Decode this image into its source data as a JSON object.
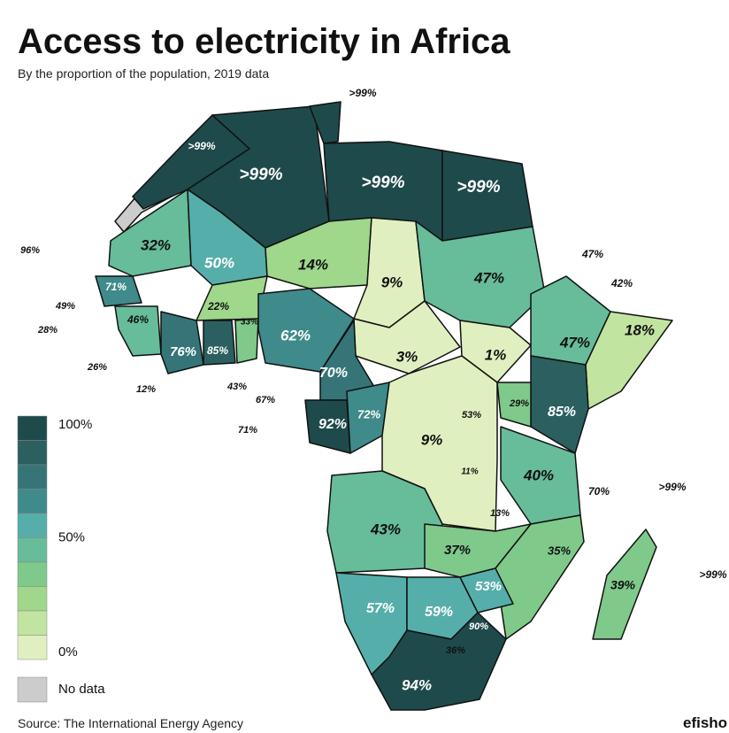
{
  "header": {
    "title": "Access to electricity in Africa",
    "subtitle": "By the proportion of the population, 2019 data"
  },
  "legend": {
    "colors": [
      "#1f4a4b",
      "#2b5f60",
      "#357577",
      "#3f8a8a",
      "#56aeaa",
      "#67bc9a",
      "#7fc98a",
      "#9fd78b",
      "#c2e4a1",
      "#e0efc0"
    ],
    "labels": [
      "100%",
      "50%",
      "0%"
    ],
    "no_data": {
      "color": "#cccccc",
      "label": "No data"
    }
  },
  "labels": [
    ">99%",
    ">99%",
    ">99%",
    ">99%",
    ">99%",
    "32%",
    "50%",
    "14%",
    "9%",
    "47%",
    "96%",
    "47%",
    "42%",
    "71%",
    "49%",
    "46%",
    "22%",
    "33%",
    "62%",
    "47%",
    "18%",
    "28%",
    "76%",
    "85%",
    "3%",
    "1%",
    "26%",
    "70%",
    "12%",
    "43%",
    "67%",
    "29%",
    "85%",
    "53%",
    "72%",
    "92%",
    "71%",
    "9%",
    "11%",
    "40%",
    ">99%",
    "70%",
    "13%",
    "43%",
    "37%",
    "35%",
    ">99%",
    "39%",
    "53%",
    "57%",
    "59%",
    "90%",
    "36%",
    "94%"
  ],
  "source": "Source: The International Energy Agency",
  "brand": "efisho"
}
